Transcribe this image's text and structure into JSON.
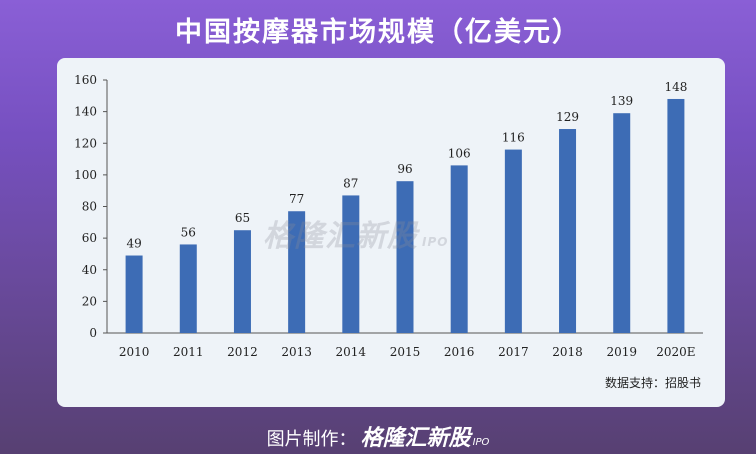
{
  "title": "中国按摩器市场规模（亿美元）",
  "source": "数据支持：招股书",
  "watermark": {
    "text": "格隆汇新股",
    "ipo": "IPO"
  },
  "footer": {
    "prefix": "图片制作：",
    "brand": "格隆汇新股",
    "ipo": "IPO"
  },
  "colors": {
    "bar": "#3d6cb5",
    "card": "#eef3f8",
    "axis": "#555555"
  },
  "chart_data": {
    "type": "bar",
    "title": "中国按摩器市场规模（亿美元）",
    "categories": [
      "2010",
      "2011",
      "2012",
      "2013",
      "2014",
      "2015",
      "2016",
      "2017",
      "2018",
      "2019",
      "2020E"
    ],
    "values": [
      49,
      56,
      65,
      77,
      87,
      96,
      106,
      116,
      129,
      139,
      148
    ],
    "xlabel": "",
    "ylabel": "",
    "ylim": [
      0,
      160
    ],
    "yticks": [
      0,
      20,
      40,
      60,
      80,
      100,
      120,
      140,
      160
    ],
    "grid": false,
    "legend": "none"
  }
}
